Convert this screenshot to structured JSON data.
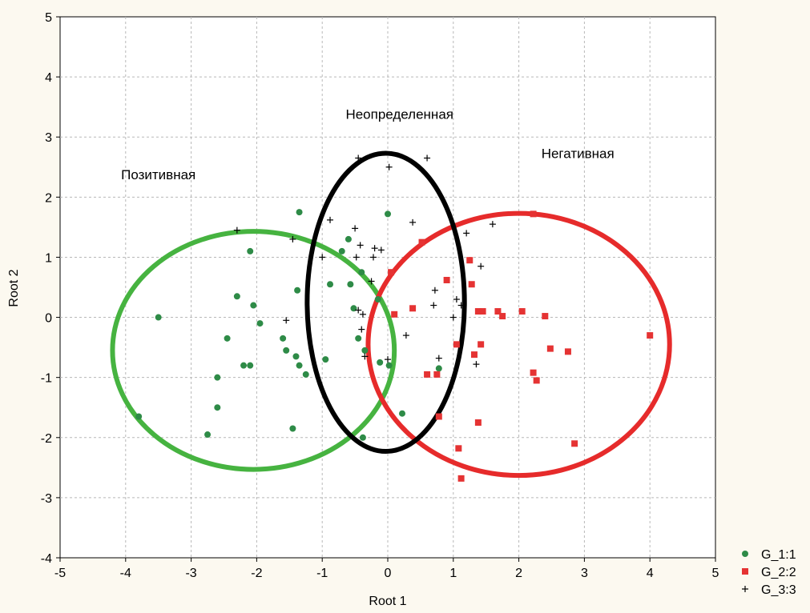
{
  "chart_data": {
    "type": "scatter",
    "title": "",
    "xlabel": "Root 1",
    "ylabel": "Root 2",
    "xlim": [
      -5,
      5
    ],
    "ylim": [
      -4,
      5
    ],
    "xticks": [
      "-5",
      "-4",
      "-3",
      "-2",
      "-1",
      "0",
      "1",
      "2",
      "3",
      "4",
      "5"
    ],
    "yticks": [
      "-4",
      "-3",
      "-2",
      "-1",
      "0",
      "1",
      "2",
      "3",
      "4",
      "5"
    ],
    "grid": true,
    "legend_position": "bottom-right, outside plot",
    "series": [
      {
        "name": "G_1:1",
        "marker": "circle",
        "color": "#2e8b47",
        "points": [
          [
            -3.8,
            -1.65
          ],
          [
            -3.5,
            0.0
          ],
          [
            -2.75,
            -1.95
          ],
          [
            -2.6,
            -1.5
          ],
          [
            -2.6,
            -1.0
          ],
          [
            -2.45,
            -0.35
          ],
          [
            -2.3,
            0.35
          ],
          [
            -2.2,
            -0.8
          ],
          [
            -2.1,
            -0.8
          ],
          [
            -2.1,
            1.1
          ],
          [
            -2.05,
            0.2
          ],
          [
            -1.95,
            -0.1
          ],
          [
            -1.6,
            -0.35
          ],
          [
            -1.55,
            -0.55
          ],
          [
            -1.45,
            -1.85
          ],
          [
            -1.4,
            -0.65
          ],
          [
            -1.38,
            0.45
          ],
          [
            -1.35,
            -0.8
          ],
          [
            -1.35,
            1.75
          ],
          [
            -1.25,
            -0.95
          ],
          [
            -0.95,
            -0.7
          ],
          [
            -0.88,
            0.55
          ],
          [
            -0.7,
            1.1
          ],
          [
            -0.6,
            1.3
          ],
          [
            -0.57,
            0.55
          ],
          [
            -0.52,
            0.15
          ],
          [
            -0.45,
            -0.35
          ],
          [
            -0.4,
            0.75
          ],
          [
            -0.38,
            -2.0
          ],
          [
            -0.35,
            -0.55
          ],
          [
            -0.15,
            0.3
          ],
          [
            -0.12,
            -0.75
          ],
          [
            0.0,
            1.72
          ],
          [
            0.02,
            -0.8
          ],
          [
            0.22,
            -1.6
          ],
          [
            0.78,
            -0.85
          ]
        ]
      },
      {
        "name": "G_2:2",
        "marker": "square",
        "color": "#e53333",
        "points": [
          [
            0.05,
            0.75
          ],
          [
            0.1,
            0.05
          ],
          [
            0.38,
            0.15
          ],
          [
            0.52,
            1.25
          ],
          [
            0.6,
            -0.95
          ],
          [
            0.75,
            -0.95
          ],
          [
            0.78,
            -1.65
          ],
          [
            0.9,
            0.62
          ],
          [
            1.05,
            -0.45
          ],
          [
            1.08,
            -2.18
          ],
          [
            1.12,
            -2.68
          ],
          [
            1.25,
            0.95
          ],
          [
            1.28,
            0.55
          ],
          [
            1.32,
            -0.62
          ],
          [
            1.38,
            0.1
          ],
          [
            1.38,
            -1.75
          ],
          [
            1.42,
            -0.45
          ],
          [
            1.45,
            0.1
          ],
          [
            1.68,
            0.1
          ],
          [
            1.75,
            0.02
          ],
          [
            2.05,
            0.1
          ],
          [
            2.22,
            -0.92
          ],
          [
            2.22,
            1.72
          ],
          [
            2.27,
            -1.05
          ],
          [
            2.4,
            0.02
          ],
          [
            2.48,
            -0.52
          ],
          [
            2.75,
            -0.57
          ],
          [
            2.85,
            -2.1
          ],
          [
            4.0,
            -0.3
          ]
        ]
      },
      {
        "name": "G_3:3",
        "marker": "plus",
        "color": "#000000",
        "points": [
          [
            -2.3,
            1.45
          ],
          [
            -1.55,
            -0.05
          ],
          [
            -1.45,
            1.3
          ],
          [
            -1.0,
            1.0
          ],
          [
            -0.88,
            1.62
          ],
          [
            -0.5,
            1.48
          ],
          [
            -0.48,
            1.0
          ],
          [
            -0.45,
            0.12
          ],
          [
            -0.45,
            2.65
          ],
          [
            -0.42,
            1.2
          ],
          [
            -0.4,
            -0.2
          ],
          [
            -0.38,
            0.05
          ],
          [
            -0.35,
            -0.65
          ],
          [
            -0.25,
            0.6
          ],
          [
            -0.22,
            1.0
          ],
          [
            -0.2,
            1.15
          ],
          [
            -0.1,
            1.12
          ],
          [
            0.0,
            -0.7
          ],
          [
            0.02,
            2.5
          ],
          [
            0.28,
            -0.3
          ],
          [
            0.38,
            1.58
          ],
          [
            0.6,
            2.65
          ],
          [
            0.7,
            0.2
          ],
          [
            0.72,
            0.45
          ],
          [
            0.78,
            -0.68
          ],
          [
            1.0,
            0.0
          ],
          [
            1.05,
            0.3
          ],
          [
            1.12,
            0.2
          ],
          [
            1.2,
            1.4
          ],
          [
            1.35,
            -0.78
          ],
          [
            1.42,
            0.85
          ],
          [
            1.6,
            1.55
          ]
        ]
      }
    ],
    "ellipses": [
      {
        "series": "G_1:1",
        "color": "#46b340",
        "center": [
          -2.05,
          -0.55
        ],
        "rx": 2.15,
        "ry": 1.98
      },
      {
        "series": "G_2:2",
        "color": "#e62b2b",
        "center": [
          2.0,
          -0.45
        ],
        "rx": 2.3,
        "ry": 2.18
      },
      {
        "series": "G_3:3",
        "color": "#000000",
        "center": [
          -0.03,
          0.25
        ],
        "rx": 1.2,
        "ry": 2.48
      }
    ],
    "annotations": [
      {
        "text": "Позитивная",
        "x": -3.5,
        "y": 2.3
      },
      {
        "text": "Неопределенная",
        "x": 0.18,
        "y": 3.3
      },
      {
        "text": "Негативная",
        "x": 2.9,
        "y": 2.65
      }
    ]
  }
}
